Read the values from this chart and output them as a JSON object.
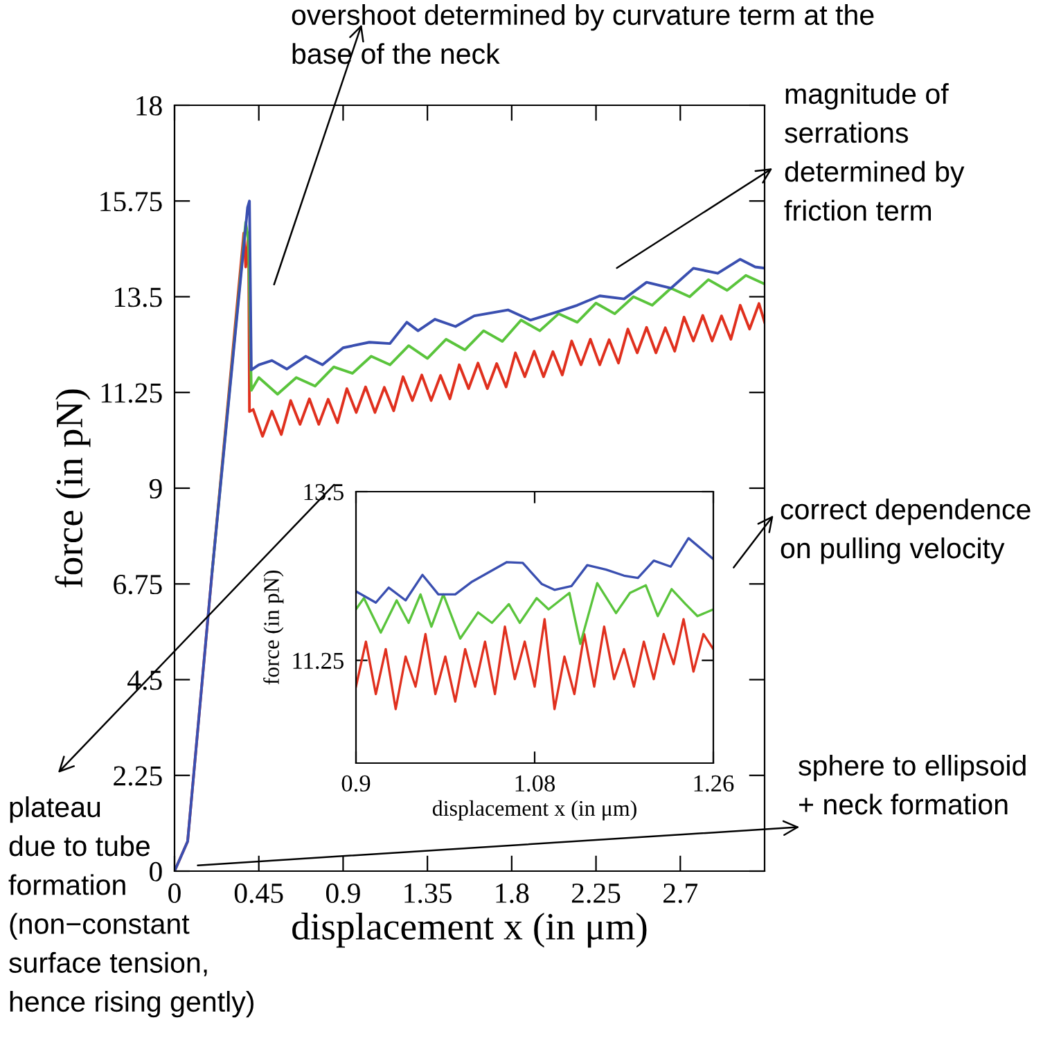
{
  "chart_data": [
    {
      "type": "line",
      "xlabel": "displacement x (in μm)",
      "ylabel": "force (in pN)",
      "xlim": [
        0,
        3.15
      ],
      "ylim": [
        0,
        18
      ],
      "xticks": [
        0,
        0.45,
        0.9,
        1.35,
        1.8,
        2.25,
        2.7
      ],
      "yticks": [
        0,
        2.25,
        4.5,
        6.75,
        9,
        11.25,
        13.5,
        15.75,
        18
      ],
      "series": [
        {
          "color": "#e0301e",
          "x": [
            0,
            0.07,
            0.2,
            0.37,
            0.38,
            0.395,
            0.4,
            0.42,
            0.47,
            0.52,
            0.57,
            0.62,
            0.67,
            0.72,
            0.77,
            0.82,
            0.87,
            0.92,
            0.97,
            1.02,
            1.07,
            1.12,
            1.17,
            1.22,
            1.27,
            1.32,
            1.37,
            1.42,
            1.47,
            1.52,
            1.57,
            1.62,
            1.67,
            1.72,
            1.77,
            1.82,
            1.87,
            1.92,
            1.97,
            2.02,
            2.07,
            2.12,
            2.17,
            2.22,
            2.27,
            2.32,
            2.37,
            2.42,
            2.47,
            2.52,
            2.57,
            2.62,
            2.67,
            2.72,
            2.77,
            2.82,
            2.87,
            2.92,
            2.97,
            3.02,
            3.07,
            3.12,
            3.15
          ],
          "values": [
            0,
            0.7,
            7.0,
            15.0,
            14.2,
            15.0,
            10.8,
            10.85,
            10.22,
            10.81,
            10.26,
            11.06,
            10.5,
            11.1,
            10.5,
            11.09,
            10.54,
            11.34,
            10.78,
            11.38,
            10.78,
            11.37,
            10.82,
            11.62,
            11.06,
            11.66,
            11.06,
            11.65,
            11.1,
            11.9,
            11.34,
            11.94,
            11.34,
            11.93,
            11.38,
            12.18,
            11.62,
            12.22,
            11.62,
            12.21,
            11.66,
            12.46,
            11.9,
            12.5,
            11.9,
            12.49,
            11.94,
            12.74,
            12.18,
            12.78,
            12.18,
            12.77,
            12.22,
            13.02,
            12.46,
            13.06,
            12.46,
            13.05,
            12.5,
            13.3,
            12.74,
            13.34,
            12.9
          ]
        },
        {
          "color": "#5ac43c",
          "x": [
            0.2,
            0.38,
            0.395,
            0.41,
            0.45,
            0.55,
            0.65,
            0.75,
            0.85,
            0.95,
            1.05,
            1.15,
            1.25,
            1.35,
            1.45,
            1.55,
            1.65,
            1.75,
            1.85,
            1.95,
            2.05,
            2.15,
            2.25,
            2.35,
            2.45,
            2.55,
            2.65,
            2.75,
            2.85,
            2.95,
            3.05,
            3.15
          ],
          "values": [
            7.0,
            15.25,
            14.8,
            11.3,
            11.6,
            11.21,
            11.6,
            11.4,
            11.85,
            11.7,
            12.1,
            11.9,
            12.35,
            12.05,
            12.5,
            12.25,
            12.7,
            12.45,
            12.95,
            12.7,
            13.1,
            12.9,
            13.35,
            13.1,
            13.5,
            13.3,
            13.7,
            13.5,
            13.9,
            13.65,
            14.0,
            13.8
          ]
        },
        {
          "color": "#3a4fb0",
          "x": [
            0,
            0.07,
            0.2,
            0.39,
            0.4,
            0.41,
            0.45,
            0.52,
            0.6,
            0.7,
            0.79,
            0.9,
            1.04,
            1.15,
            1.24,
            1.3,
            1.39,
            1.5,
            1.6,
            1.78,
            1.9,
            2.04,
            2.15,
            2.27,
            2.4,
            2.52,
            2.65,
            2.77,
            2.9,
            3.02,
            3.1,
            3.15
          ],
          "values": [
            0,
            0.7,
            7.0,
            15.6,
            15.75,
            11.78,
            11.9,
            12.0,
            11.8,
            12.1,
            11.9,
            12.3,
            12.43,
            12.4,
            12.9,
            12.7,
            12.97,
            12.8,
            13.05,
            13.19,
            12.95,
            13.14,
            13.3,
            13.52,
            13.45,
            13.84,
            13.7,
            14.17,
            14.05,
            14.38,
            14.2,
            14.17
          ]
        }
      ],
      "annotations": [
        "overshoot determined by curvature term at the\nbase of the neck",
        "magnitude of\nserrations\ndetermined by\nfriction term",
        "correct dependence\non pulling velocity",
        "sphere to ellipsoid\n+ neck formation",
        "plateau\ndue to tube\nformation\n(non−constant\nsurface tension,\nhence rising gently)"
      ]
    },
    {
      "type": "line",
      "xlabel": "displacement x (in μm)",
      "ylabel": "force (in pN)",
      "xlim": [
        0.9,
        1.26
      ],
      "ylim": [
        9.88,
        13.5
      ],
      "xticks": [
        0.9,
        1.08,
        1.26
      ],
      "yticks": [
        11.25,
        13.5
      ],
      "series": [
        {
          "color": "#e0301e",
          "x": [
            0.9,
            0.91,
            0.92,
            0.93,
            0.94,
            0.95,
            0.96,
            0.97,
            0.98,
            0.99,
            1.0,
            1.01,
            1.02,
            1.03,
            1.04,
            1.05,
            1.06,
            1.07,
            1.08,
            1.09,
            1.1,
            1.11,
            1.12,
            1.13,
            1.14,
            1.15,
            1.16,
            1.17,
            1.18,
            1.19,
            1.2,
            1.21,
            1.22,
            1.23,
            1.24,
            1.25,
            1.26
          ],
          "values": [
            10.9,
            11.5,
            10.8,
            11.4,
            10.6,
            11.3,
            10.9,
            11.6,
            10.8,
            11.3,
            10.7,
            11.4,
            10.9,
            11.5,
            10.8,
            11.7,
            11.0,
            11.5,
            10.9,
            11.8,
            10.6,
            11.3,
            10.8,
            11.6,
            10.9,
            11.7,
            11.0,
            11.4,
            10.9,
            11.5,
            11.0,
            11.6,
            11.2,
            11.8,
            11.1,
            11.6,
            11.4
          ]
        },
        {
          "color": "#5ac43c",
          "x": [
            0.9,
            0.908,
            0.925,
            0.941,
            0.953,
            0.965,
            0.976,
            0.988,
            1.005,
            1.023,
            1.037,
            1.054,
            1.065,
            1.082,
            1.094,
            1.115,
            1.126,
            1.143,
            1.162,
            1.176,
            1.192,
            1.204,
            1.218,
            1.232,
            1.244,
            1.26
          ],
          "values": [
            11.93,
            12.08,
            11.62,
            12.05,
            11.75,
            12.13,
            11.7,
            12.13,
            11.54,
            11.89,
            11.75,
            12.0,
            11.75,
            12.08,
            11.93,
            12.15,
            11.47,
            12.28,
            11.88,
            12.15,
            12.25,
            11.84,
            12.2,
            12.0,
            11.84,
            11.93
          ]
        },
        {
          "color": "#3a4fb0",
          "x": [
            0.9,
            0.92,
            0.933,
            0.95,
            0.967,
            0.983,
            1.0,
            1.017,
            1.052,
            1.068,
            1.087,
            1.1,
            1.117,
            1.133,
            1.152,
            1.17,
            1.184,
            1.2,
            1.217,
            1.235,
            1.26
          ],
          "values": [
            12.17,
            12.02,
            12.22,
            12.05,
            12.39,
            12.13,
            12.13,
            12.3,
            12.56,
            12.55,
            12.27,
            12.19,
            12.24,
            12.52,
            12.46,
            12.38,
            12.35,
            12.58,
            12.5,
            12.88,
            12.6
          ]
        }
      ]
    }
  ]
}
